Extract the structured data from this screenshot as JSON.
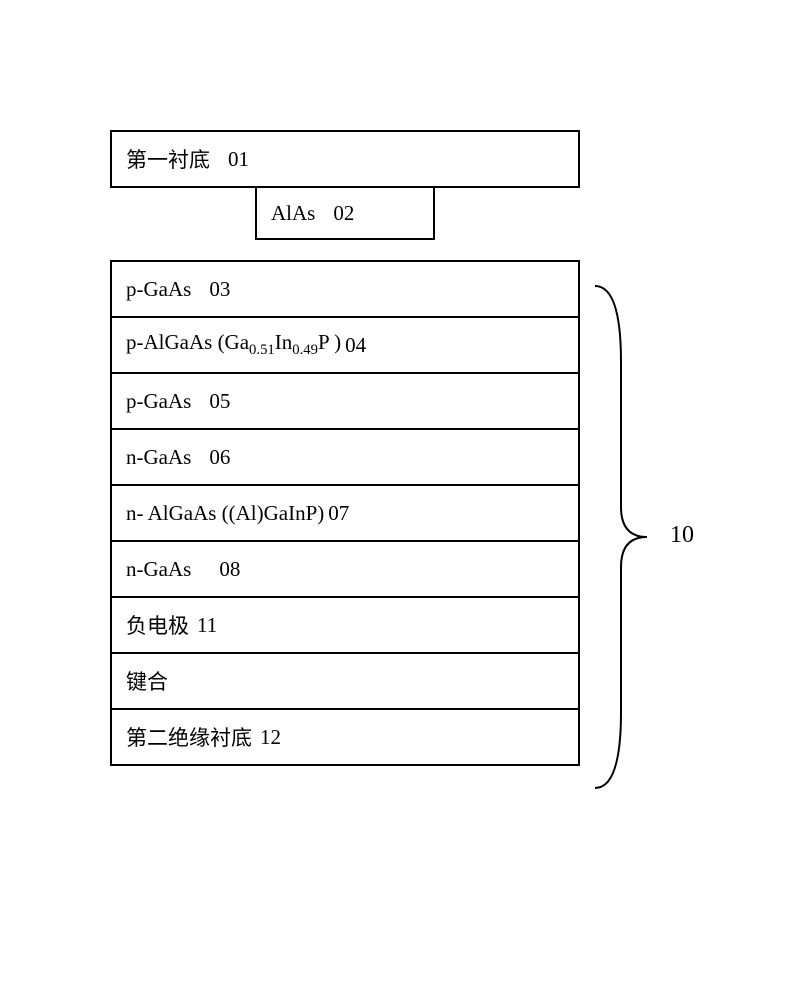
{
  "diagram": {
    "type": "layer-stack",
    "border_color": "#000000",
    "background_color": "#ffffff",
    "text_color": "#000000",
    "font_family": "serif",
    "base_fontsize": 21,
    "brace_label": "10",
    "top_layer": {
      "label": "第一衬底",
      "number": "01"
    },
    "etch_layer": {
      "label": "AlAs",
      "number": "02"
    },
    "stack_layers": [
      {
        "label_html": "p-GaAs",
        "number": "03"
      },
      {
        "label_html": "p-AlGaAs (Ga<sub>0.51</sub>In<sub>0.49</sub>P )",
        "number": "04"
      },
      {
        "label_html": "p-GaAs",
        "number": "05"
      },
      {
        "label_html": "n-GaAs",
        "number": "06"
      },
      {
        "label_html": "n- AlGaAs ((Al)GaInP)",
        "number": "07"
      },
      {
        "label_html": "n-GaAs",
        "number": "08"
      },
      {
        "label_html": "负电极",
        "number": "11"
      },
      {
        "label_html": "键合",
        "number": ""
      },
      {
        "label_html": "第二绝缘衬底",
        "number": "12"
      }
    ]
  }
}
